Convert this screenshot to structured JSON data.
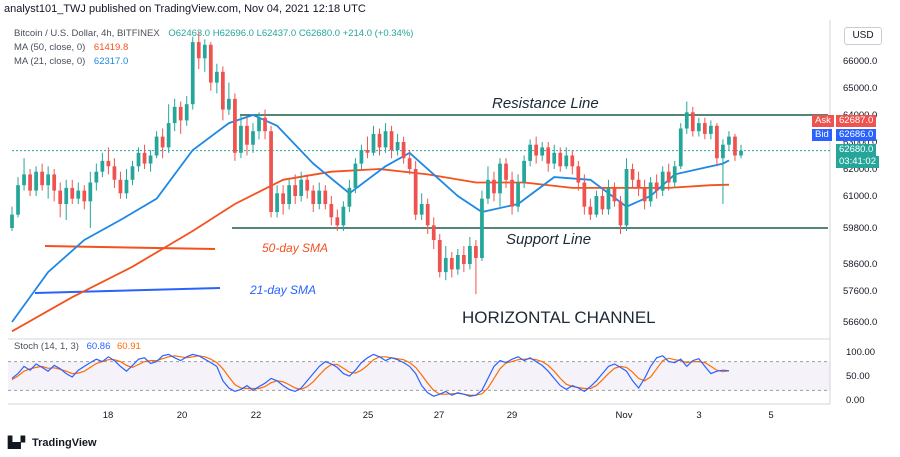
{
  "header": {
    "published_by": "analyst101_TWJ published on TradingView.com, Nov 04, 2021 12:18 UTC"
  },
  "legend": {
    "symbol": "Bitcoin / U.S. Dollar, 4h, BITFINEX",
    "ohlc": "O62463.0  H62696.0  L62437.0  C62680.0  +214.0 (+0.34%)",
    "ma50_label": "MA (50, close, 0)",
    "ma50_value": "61419.8",
    "ma21_label": "MA (21, close, 0)",
    "ma21_value": "62317.0"
  },
  "currency_button": "USD",
  "price_tags": {
    "ask_label": "Ask",
    "ask_value": "62687.0",
    "bid_label": "Bid",
    "bid_value": "62686.0",
    "last_value": "62680.0",
    "countdown": "03:41:02"
  },
  "annotations": {
    "resistance": "Resistance Line",
    "support": "Support Line",
    "sma50": "50-day SMA",
    "sma21": "21-day SMA",
    "channel": "HORIZONTAL CHANNEL"
  },
  "stoch_legend": {
    "label": "Stoch (14, 1, 3)",
    "k": "60.86",
    "d": "60.91"
  },
  "footer": {
    "logo_text": "TradingView"
  },
  "colors": {
    "up": "#26a69a",
    "down": "#ef5350",
    "ma50": "#f4511e",
    "ma21": "#1e88e5",
    "stoch_k": "#2962ff",
    "stoch_d": "#ff6d00"
  },
  "chart_data": {
    "type": "candlestick",
    "price_axis": {
      "ticks": [
        66000,
        65000,
        64000,
        63000,
        62000,
        61000,
        59800,
        58600,
        57600,
        56600
      ],
      "range": [
        56000,
        67000
      ]
    },
    "time_axis": {
      "ticks": [
        "18",
        "20",
        "22",
        "25",
        "27",
        "29",
        "Nov",
        "3",
        "5"
      ]
    },
    "resistance_level": 64000,
    "support_level": 59800,
    "candles": [
      {
        "o": 59800,
        "c": 60300,
        "h": 60600,
        "l": 59700
      },
      {
        "o": 60300,
        "c": 61400,
        "h": 61700,
        "l": 60200
      },
      {
        "o": 61400,
        "c": 61800,
        "h": 62400,
        "l": 61200
      },
      {
        "o": 61800,
        "c": 61200,
        "h": 62000,
        "l": 61000
      },
      {
        "o": 61200,
        "c": 61900,
        "h": 62100,
        "l": 61000
      },
      {
        "o": 61900,
        "c": 61400,
        "h": 62200,
        "l": 61200
      },
      {
        "o": 61400,
        "c": 61800,
        "h": 62100,
        "l": 60900
      },
      {
        "o": 61800,
        "c": 61200,
        "h": 62000,
        "l": 60800
      },
      {
        "o": 61200,
        "c": 60700,
        "h": 61500,
        "l": 60200
      },
      {
        "o": 60700,
        "c": 61300,
        "h": 61600,
        "l": 60100
      },
      {
        "o": 61300,
        "c": 60900,
        "h": 61600,
        "l": 60700
      },
      {
        "o": 60900,
        "c": 61200,
        "h": 61500,
        "l": 60700
      },
      {
        "o": 61200,
        "c": 60800,
        "h": 61400,
        "l": 60500
      },
      {
        "o": 60800,
        "c": 61500,
        "h": 61900,
        "l": 59800
      },
      {
        "o": 61500,
        "c": 61900,
        "h": 62200,
        "l": 61200
      },
      {
        "o": 61900,
        "c": 62300,
        "h": 62600,
        "l": 61700
      },
      {
        "o": 62300,
        "c": 62100,
        "h": 62800,
        "l": 61800
      },
      {
        "o": 62100,
        "c": 61600,
        "h": 62400,
        "l": 61300
      },
      {
        "o": 61600,
        "c": 61100,
        "h": 61900,
        "l": 60900
      },
      {
        "o": 61100,
        "c": 61600,
        "h": 62000,
        "l": 60900
      },
      {
        "o": 61600,
        "c": 62100,
        "h": 62300,
        "l": 61400
      },
      {
        "o": 62100,
        "c": 62600,
        "h": 62800,
        "l": 61900
      },
      {
        "o": 62600,
        "c": 62200,
        "h": 62900,
        "l": 62000
      },
      {
        "o": 62200,
        "c": 62500,
        "h": 62700,
        "l": 61900
      },
      {
        "o": 62500,
        "c": 63200,
        "h": 63400,
        "l": 62400
      },
      {
        "o": 63200,
        "c": 62800,
        "h": 63500,
        "l": 62400
      },
      {
        "o": 62800,
        "c": 63700,
        "h": 64400,
        "l": 62600
      },
      {
        "o": 63700,
        "c": 64300,
        "h": 64600,
        "l": 63400
      },
      {
        "o": 64300,
        "c": 63800,
        "h": 64500,
        "l": 63300
      },
      {
        "o": 63800,
        "c": 64400,
        "h": 64700,
        "l": 63600
      },
      {
        "o": 64400,
        "c": 66700,
        "h": 66900,
        "l": 64200
      },
      {
        "o": 66700,
        "c": 66100,
        "h": 67100,
        "l": 65700
      },
      {
        "o": 66100,
        "c": 66600,
        "h": 66800,
        "l": 65600
      },
      {
        "o": 66600,
        "c": 65200,
        "h": 66700,
        "l": 64900
      },
      {
        "o": 65200,
        "c": 65600,
        "h": 65900,
        "l": 64800
      },
      {
        "o": 65600,
        "c": 64200,
        "h": 65800,
        "l": 63800
      },
      {
        "o": 64200,
        "c": 64600,
        "h": 65200,
        "l": 64000
      },
      {
        "o": 64600,
        "c": 62600,
        "h": 64800,
        "l": 62300
      },
      {
        "o": 62600,
        "c": 63600,
        "h": 64000,
        "l": 62400
      },
      {
        "o": 63600,
        "c": 62900,
        "h": 63900,
        "l": 62500
      },
      {
        "o": 62900,
        "c": 63400,
        "h": 63700,
        "l": 62600
      },
      {
        "o": 63400,
        "c": 63900,
        "h": 64100,
        "l": 63100
      },
      {
        "o": 63900,
        "c": 63400,
        "h": 64200,
        "l": 63100
      },
      {
        "o": 63400,
        "c": 60400,
        "h": 63600,
        "l": 60200
      },
      {
        "o": 60400,
        "c": 61100,
        "h": 61400,
        "l": 60200
      },
      {
        "o": 61100,
        "c": 60700,
        "h": 61400,
        "l": 60300
      },
      {
        "o": 60700,
        "c": 61400,
        "h": 61600,
        "l": 60500
      },
      {
        "o": 61400,
        "c": 61000,
        "h": 61800,
        "l": 60700
      },
      {
        "o": 61000,
        "c": 61600,
        "h": 61900,
        "l": 60800
      },
      {
        "o": 61600,
        "c": 61200,
        "h": 61800,
        "l": 60900
      },
      {
        "o": 61200,
        "c": 60700,
        "h": 61400,
        "l": 60400
      },
      {
        "o": 60700,
        "c": 61200,
        "h": 61500,
        "l": 60500
      },
      {
        "o": 61200,
        "c": 60700,
        "h": 61400,
        "l": 60500
      },
      {
        "o": 60700,
        "c": 60200,
        "h": 61000,
        "l": 59900
      },
      {
        "o": 60200,
        "c": 59900,
        "h": 60500,
        "l": 59700
      },
      {
        "o": 59900,
        "c": 60600,
        "h": 60800,
        "l": 59700
      },
      {
        "o": 60600,
        "c": 61300,
        "h": 61600,
        "l": 60400
      },
      {
        "o": 61300,
        "c": 62200,
        "h": 62400,
        "l": 61100
      },
      {
        "o": 62200,
        "c": 62700,
        "h": 62900,
        "l": 62000
      },
      {
        "o": 62700,
        "c": 62600,
        "h": 63200,
        "l": 62400
      },
      {
        "o": 62600,
        "c": 63300,
        "h": 63600,
        "l": 62500
      },
      {
        "o": 63300,
        "c": 62800,
        "h": 63500,
        "l": 62500
      },
      {
        "o": 62800,
        "c": 63400,
        "h": 63700,
        "l": 62600
      },
      {
        "o": 63400,
        "c": 62700,
        "h": 63600,
        "l": 62400
      },
      {
        "o": 62700,
        "c": 63000,
        "h": 63300,
        "l": 62500
      },
      {
        "o": 63000,
        "c": 62400,
        "h": 63200,
        "l": 62200
      },
      {
        "o": 62400,
        "c": 62000,
        "h": 62700,
        "l": 61800
      },
      {
        "o": 62000,
        "c": 60300,
        "h": 62300,
        "l": 60100
      },
      {
        "o": 60300,
        "c": 60700,
        "h": 61100,
        "l": 60100
      },
      {
        "o": 60700,
        "c": 59900,
        "h": 60900,
        "l": 59600
      },
      {
        "o": 59900,
        "c": 59400,
        "h": 60200,
        "l": 59100
      },
      {
        "o": 59400,
        "c": 58300,
        "h": 59600,
        "l": 58100
      },
      {
        "o": 58300,
        "c": 58800,
        "h": 59200,
        "l": 58000
      },
      {
        "o": 58800,
        "c": 58400,
        "h": 59000,
        "l": 58100
      },
      {
        "o": 58400,
        "c": 58900,
        "h": 59100,
        "l": 58200
      },
      {
        "o": 58900,
        "c": 58600,
        "h": 59200,
        "l": 58300
      },
      {
        "o": 58600,
        "c": 59200,
        "h": 59500,
        "l": 58400
      },
      {
        "o": 59200,
        "c": 58800,
        "h": 59400,
        "l": 57500
      },
      {
        "o": 58800,
        "c": 60900,
        "h": 61200,
        "l": 58700
      },
      {
        "o": 60900,
        "c": 61600,
        "h": 62100,
        "l": 60700
      },
      {
        "o": 61600,
        "c": 61100,
        "h": 61900,
        "l": 60800
      },
      {
        "o": 61100,
        "c": 62200,
        "h": 62400,
        "l": 60600
      },
      {
        "o": 62200,
        "c": 61600,
        "h": 62400,
        "l": 61300
      },
      {
        "o": 61600,
        "c": 60600,
        "h": 61900,
        "l": 60300
      },
      {
        "o": 60600,
        "c": 61500,
        "h": 61800,
        "l": 60400
      },
      {
        "o": 61500,
        "c": 62300,
        "h": 62500,
        "l": 61300
      },
      {
        "o": 62300,
        "c": 62900,
        "h": 63100,
        "l": 62100
      },
      {
        "o": 62900,
        "c": 62500,
        "h": 63200,
        "l": 62200
      },
      {
        "o": 62500,
        "c": 62800,
        "h": 63000,
        "l": 62300
      },
      {
        "o": 62800,
        "c": 62200,
        "h": 63000,
        "l": 61900
      },
      {
        "o": 62200,
        "c": 62600,
        "h": 62900,
        "l": 62000
      },
      {
        "o": 62600,
        "c": 62100,
        "h": 62800,
        "l": 61900
      },
      {
        "o": 62100,
        "c": 62500,
        "h": 62800,
        "l": 62000
      },
      {
        "o": 62500,
        "c": 62100,
        "h": 62700,
        "l": 61800
      },
      {
        "o": 62100,
        "c": 61500,
        "h": 62300,
        "l": 61200
      },
      {
        "o": 61500,
        "c": 60600,
        "h": 61800,
        "l": 60300
      },
      {
        "o": 60600,
        "c": 60300,
        "h": 60900,
        "l": 60100
      },
      {
        "o": 60300,
        "c": 61000,
        "h": 61200,
        "l": 60200
      },
      {
        "o": 61000,
        "c": 60500,
        "h": 61300,
        "l": 60300
      },
      {
        "o": 60500,
        "c": 61300,
        "h": 61600,
        "l": 60300
      },
      {
        "o": 61300,
        "c": 60800,
        "h": 61500,
        "l": 60600
      },
      {
        "o": 60800,
        "c": 59900,
        "h": 61000,
        "l": 59600
      },
      {
        "o": 59900,
        "c": 62000,
        "h": 62400,
        "l": 59700
      },
      {
        "o": 62000,
        "c": 61600,
        "h": 62200,
        "l": 61300
      },
      {
        "o": 61600,
        "c": 61300,
        "h": 61900,
        "l": 61000
      },
      {
        "o": 61300,
        "c": 60800,
        "h": 61600,
        "l": 60500
      },
      {
        "o": 60800,
        "c": 61500,
        "h": 61700,
        "l": 60600
      },
      {
        "o": 61500,
        "c": 61200,
        "h": 61800,
        "l": 60900
      },
      {
        "o": 61200,
        "c": 61900,
        "h": 62100,
        "l": 61000
      },
      {
        "o": 61900,
        "c": 61500,
        "h": 62200,
        "l": 61200
      },
      {
        "o": 61500,
        "c": 62100,
        "h": 62300,
        "l": 61300
      },
      {
        "o": 62100,
        "c": 63500,
        "h": 63700,
        "l": 62000
      },
      {
        "o": 63500,
        "c": 64100,
        "h": 64500,
        "l": 63300
      },
      {
        "o": 64100,
        "c": 63400,
        "h": 64300,
        "l": 63200
      },
      {
        "o": 63400,
        "c": 63700,
        "h": 63900,
        "l": 63200
      },
      {
        "o": 63700,
        "c": 63300,
        "h": 63900,
        "l": 63100
      },
      {
        "o": 63300,
        "c": 63600,
        "h": 63800,
        "l": 63100
      },
      {
        "o": 63600,
        "c": 62400,
        "h": 63700,
        "l": 62100
      },
      {
        "o": 62400,
        "c": 62900,
        "h": 63100,
        "l": 60700
      },
      {
        "o": 62900,
        "c": 63200,
        "h": 63400,
        "l": 62700
      },
      {
        "o": 63200,
        "c": 62500,
        "h": 63300,
        "l": 62300
      },
      {
        "o": 62500,
        "c": 62680,
        "h": 62900,
        "l": 62400
      }
    ],
    "ma50": [
      [
        0,
        56300
      ],
      [
        10,
        57400
      ],
      [
        20,
        58500
      ],
      [
        30,
        59700
      ],
      [
        37,
        60700
      ],
      [
        45,
        61600
      ],
      [
        53,
        61900
      ],
      [
        61,
        62000
      ],
      [
        69,
        61800
      ],
      [
        77,
        61500
      ],
      [
        85,
        61500
      ],
      [
        93,
        61300
      ],
      [
        101,
        61300
      ],
      [
        109,
        61300
      ],
      [
        116,
        61400
      ],
      [
        119,
        61420
      ]
    ],
    "ma21": [
      [
        0,
        56600
      ],
      [
        6,
        58300
      ],
      [
        12,
        59400
      ],
      [
        18,
        60100
      ],
      [
        24,
        60900
      ],
      [
        30,
        62700
      ],
      [
        36,
        63700
      ],
      [
        40,
        64000
      ],
      [
        44,
        63600
      ],
      [
        50,
        62200
      ],
      [
        56,
        61100
      ],
      [
        62,
        62100
      ],
      [
        66,
        62600
      ],
      [
        70,
        61800
      ],
      [
        74,
        61000
      ],
      [
        78,
        60400
      ],
      [
        84,
        60700
      ],
      [
        90,
        61700
      ],
      [
        96,
        61600
      ],
      [
        102,
        60600
      ],
      [
        106,
        61000
      ],
      [
        110,
        61800
      ],
      [
        114,
        62000
      ],
      [
        118,
        62200
      ],
      [
        119,
        62317
      ]
    ],
    "stochastic": {
      "ylim": [
        0,
        100
      ],
      "ticks": [
        100,
        50,
        0
      ],
      "band": [
        20,
        80
      ],
      "k": [
        45,
        55,
        70,
        62,
        75,
        68,
        60,
        72,
        65,
        55,
        48,
        62,
        70,
        78,
        85,
        80,
        90,
        82,
        70,
        60,
        72,
        85,
        88,
        76,
        80,
        92,
        95,
        88,
        82,
        90,
        95,
        92,
        85,
        78,
        70,
        40,
        25,
        18,
        22,
        30,
        20,
        28,
        35,
        45,
        40,
        30,
        22,
        18,
        25,
        40,
        55,
        70,
        80,
        75,
        68,
        55,
        50,
        62,
        78,
        88,
        95,
        90,
        82,
        88,
        84,
        78,
        70,
        55,
        30,
        15,
        8,
        12,
        18,
        10,
        15,
        12,
        8,
        10,
        20,
        45,
        70,
        82,
        78,
        85,
        90,
        82,
        88,
        80,
        72,
        60,
        45,
        30,
        22,
        30,
        25,
        18,
        28,
        40,
        55,
        70,
        75,
        68,
        60,
        40,
        25,
        45,
        70,
        88,
        92,
        80,
        78,
        85,
        70,
        82,
        86,
        70,
        55,
        60,
        62,
        60.86
      ],
      "d": [
        42,
        50,
        60,
        65,
        68,
        70,
        66,
        67,
        64,
        60,
        55,
        56,
        60,
        68,
        76,
        80,
        84,
        84,
        80,
        72,
        68,
        74,
        80,
        82,
        82,
        86,
        90,
        92,
        90,
        88,
        90,
        92,
        90,
        85,
        78,
        65,
        48,
        32,
        25,
        24,
        24,
        24,
        28,
        36,
        40,
        38,
        32,
        25,
        22,
        28,
        38,
        52,
        65,
        74,
        74,
        66,
        58,
        56,
        62,
        72,
        84,
        90,
        90,
        88,
        86,
        84,
        78,
        68,
        52,
        35,
        20,
        12,
        12,
        13,
        14,
        12,
        10,
        10,
        13,
        25,
        45,
        65,
        77,
        80,
        84,
        85,
        86,
        84,
        80,
        72,
        60,
        45,
        33,
        28,
        26,
        24,
        24,
        30,
        42,
        55,
        66,
        70,
        68,
        58,
        45,
        40,
        48,
        65,
        82,
        87,
        84,
        82,
        78,
        80,
        80,
        78,
        70,
        62,
        59,
        60.91
      ]
    }
  }
}
